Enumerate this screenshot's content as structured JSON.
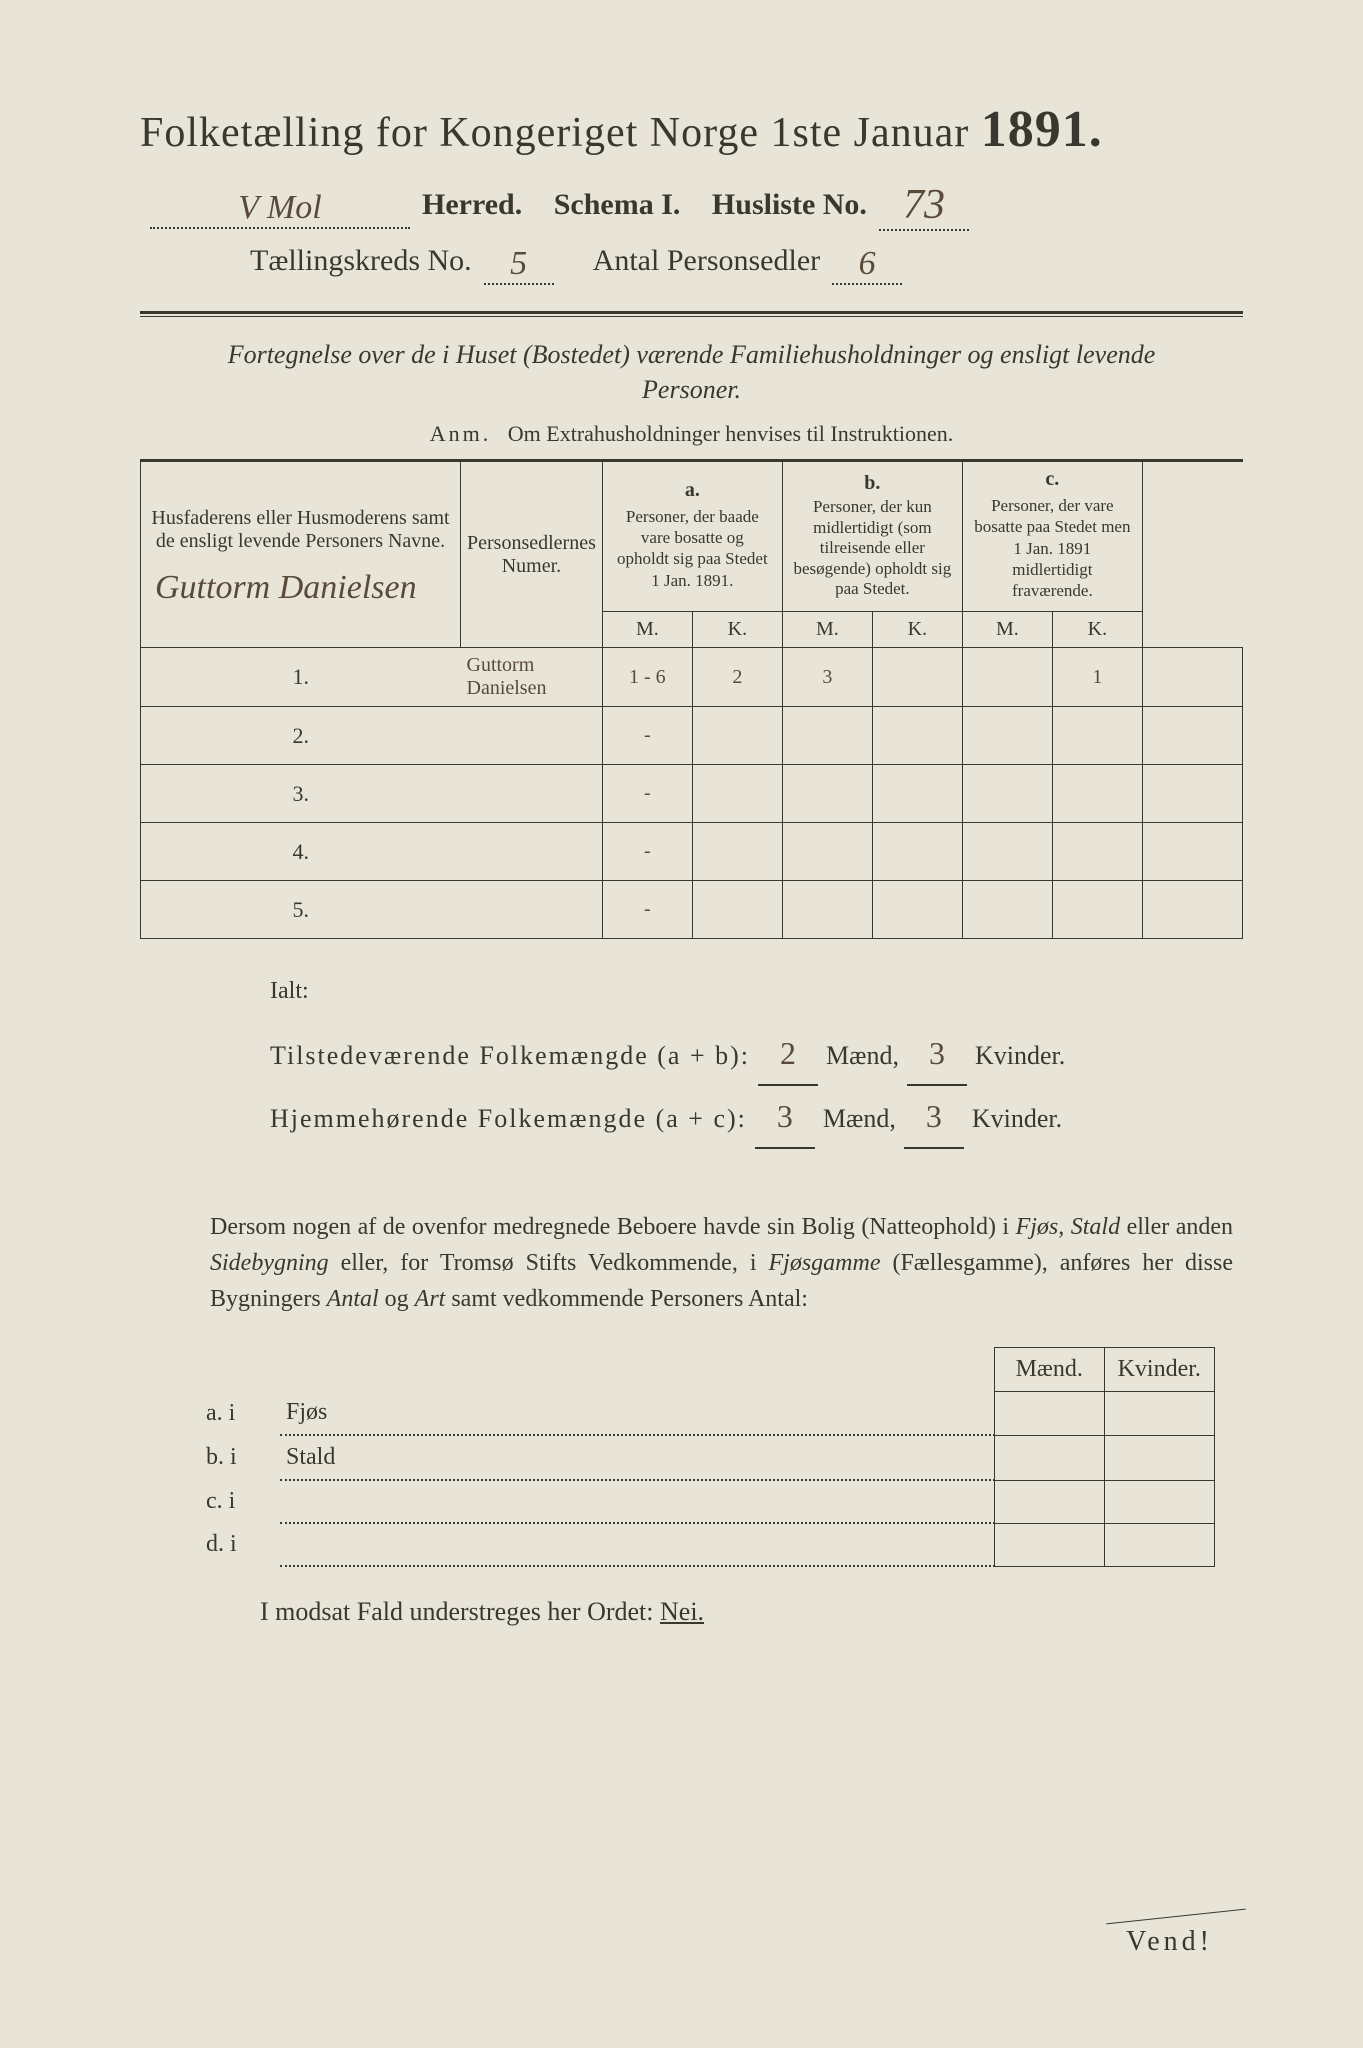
{
  "header": {
    "title_prefix": "Folketælling for Kongeriget Norge 1ste Januar",
    "year": "1891.",
    "herred_value": "V Mol",
    "herred_label": "Herred.",
    "schema_label": "Schema I.",
    "husliste_label": "Husliste No.",
    "husliste_value": "73",
    "kreds_label": "Tællingskreds No.",
    "kreds_value": "5",
    "personsedler_label": "Antal Personsedler",
    "personsedler_value": "6"
  },
  "intro": {
    "text": "Fortegnelse over de i Huset (Bostedet) værende Familiehusholdninger og ensligt levende Personer.",
    "anm_label": "Anm.",
    "anm_text": "Om Extrahusholdninger henvises til Instruktionen."
  },
  "table": {
    "col_name": "Husfaderens eller Husmoderens samt de ensligt levende Personers Navne.",
    "col_num": "Personsedlernes Numer.",
    "col_a_label": "a.",
    "col_a_text": "Personer, der baade vare bosatte og opholdt sig paa Stedet 1 Jan. 1891.",
    "col_b_label": "b.",
    "col_b_text": "Personer, der kun midlertidigt (som tilreisende eller besøgende) opholdt sig paa Stedet.",
    "col_c_label": "c.",
    "col_c_text": "Personer, der vare bosatte paa Stedet men 1 Jan. 1891 midlertidigt fraværende.",
    "mk_m": "M.",
    "mk_k": "K.",
    "header_handwritten": "Guttorm Danielsen",
    "rows": [
      {
        "n": "1.",
        "name": "Guttorm Danielsen",
        "num": "1 - 6",
        "a_m": "2",
        "a_k": "3",
        "b_m": "",
        "b_k": "",
        "c_m": "1",
        "c_k": ""
      },
      {
        "n": "2.",
        "name": "",
        "num": "-",
        "a_m": "",
        "a_k": "",
        "b_m": "",
        "b_k": "",
        "c_m": "",
        "c_k": ""
      },
      {
        "n": "3.",
        "name": "",
        "num": "-",
        "a_m": "",
        "a_k": "",
        "b_m": "",
        "b_k": "",
        "c_m": "",
        "c_k": ""
      },
      {
        "n": "4.",
        "name": "",
        "num": "-",
        "a_m": "",
        "a_k": "",
        "b_m": "",
        "b_k": "",
        "c_m": "",
        "c_k": ""
      },
      {
        "n": "5.",
        "name": "",
        "num": "-",
        "a_m": "",
        "a_k": "",
        "b_m": "",
        "b_k": "",
        "c_m": "",
        "c_k": ""
      }
    ]
  },
  "totals": {
    "ialt": "Ialt:",
    "line1_label": "Tilstedeværende Folkemængde (a + b):",
    "line2_label": "Hjemmehørende Folkemængde (a + c):",
    "maend": "Mænd,",
    "kvinder": "Kvinder.",
    "v1_m": "2",
    "v1_k": "3",
    "v2_m": "3",
    "v2_k": "3"
  },
  "note": {
    "text1": "Dersom nogen af de ovenfor medregnede Beboere havde sin Bolig (Natteophold) i ",
    "em1": "Fjøs, Stald",
    "text2": " eller anden ",
    "em2": "Sidebygning",
    "text3": " eller, for Tromsø Stifts Vedkommende, i ",
    "em3": "Fjøsgamme",
    "text4": " (Fællesgamme), anføres her disse Bygningers ",
    "em4": "Antal",
    "text5": " og ",
    "em5": "Art",
    "text6": " samt vedkommende Personers Antal:"
  },
  "sub": {
    "maend": "Mænd.",
    "kvinder": "Kvinder.",
    "rows": [
      {
        "l": "a.  i",
        "t": "Fjøs"
      },
      {
        "l": "b.  i",
        "t": "Stald"
      },
      {
        "l": "c.  i",
        "t": ""
      },
      {
        "l": "d.  i",
        "t": ""
      }
    ]
  },
  "nei": {
    "text": "I modsat Fald understreges her Ordet:",
    "word": "Nei."
  },
  "vend": "Vend!"
}
